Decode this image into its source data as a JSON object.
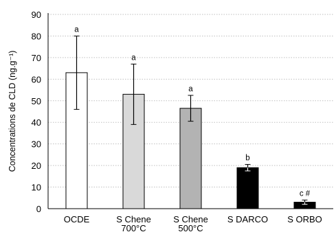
{
  "chart_data": {
    "type": "bar",
    "title": "",
    "xlabel": "",
    "ylabel": "Concentrations de CLD (ng.g⁻¹)",
    "ylim": [
      0,
      90
    ],
    "yticks": [
      0,
      10,
      20,
      30,
      40,
      50,
      60,
      70,
      80,
      90
    ],
    "grid": "horizontal dotted",
    "categories": [
      [
        "OCDE"
      ],
      [
        "S Chene",
        "700°C"
      ],
      [
        "S Chene",
        "500°C"
      ],
      [
        "S DARCO"
      ],
      [
        "S ORBO"
      ]
    ],
    "values": [
      63,
      53,
      46.5,
      19,
      3
    ],
    "error_bars": [
      17,
      14,
      6,
      1.5,
      1
    ],
    "significance_labels": [
      "a",
      "a",
      "a",
      "b",
      "c #"
    ],
    "bar_colors": [
      "#ffffff",
      "#d9d9d9",
      "#b3b3b3",
      "#000000",
      "#000000"
    ],
    "bar_outline": "#000000"
  }
}
